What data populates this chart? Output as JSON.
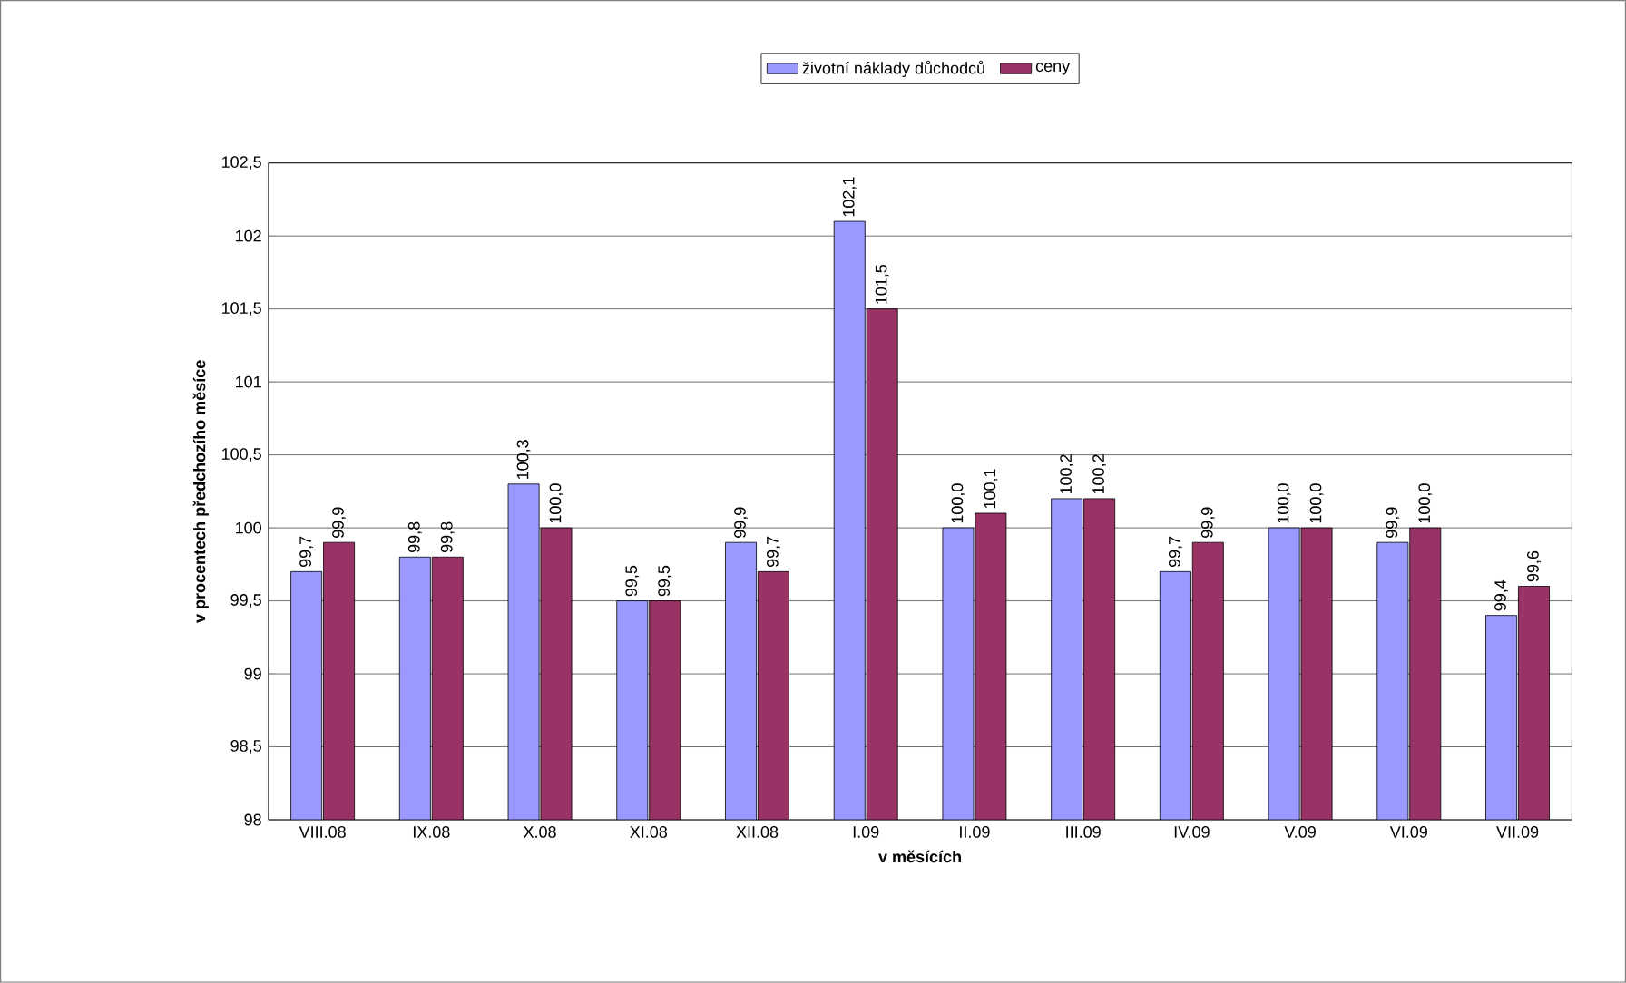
{
  "chart_data": {
    "type": "bar",
    "xlabel": "v měsících",
    "ylabel": "v procentech předchozího měsíce",
    "categories": [
      "VIII.08",
      "IX.08",
      "X.08",
      "XI.08",
      "XII.08",
      "I.09",
      "II.09",
      "III.09",
      "IV.09",
      "V.09",
      "VI.09",
      "VII.09"
    ],
    "series": [
      {
        "name": "životní náklady důchodců",
        "color": "#9999ff",
        "values": [
          99.7,
          99.8,
          100.3,
          99.5,
          99.9,
          102.1,
          100.0,
          100.2,
          99.7,
          100.0,
          99.9,
          99.4
        ],
        "value_labels": [
          "99,7",
          "99,8",
          "100,3",
          "99,5",
          "99,9",
          "102,1",
          "100,0",
          "100,2",
          "99,7",
          "100,0",
          "99,9",
          "99,4"
        ]
      },
      {
        "name": "ceny",
        "color": "#993366",
        "values": [
          99.9,
          99.8,
          100.0,
          99.5,
          99.7,
          101.5,
          100.1,
          100.2,
          99.9,
          100.0,
          100.0,
          99.6
        ],
        "value_labels": [
          "99,9",
          "99,8",
          "100,0",
          "99,5",
          "99,7",
          "101,5",
          "100,1",
          "100,2",
          "99,9",
          "100,0",
          "100,0",
          "99,6"
        ]
      }
    ],
    "ylim": [
      98,
      102.5
    ],
    "yticks": [
      98,
      {
        "value": 98.5,
        "label": "98,5"
      },
      99,
      {
        "value": 99.5,
        "label": "99,5"
      },
      100,
      {
        "value": 100.5,
        "label": "100,5"
      },
      101,
      {
        "value": 101.5,
        "label": "101,5"
      },
      102,
      {
        "value": 102.5,
        "label": "102,5"
      }
    ],
    "grid": "y",
    "legend": "top"
  }
}
